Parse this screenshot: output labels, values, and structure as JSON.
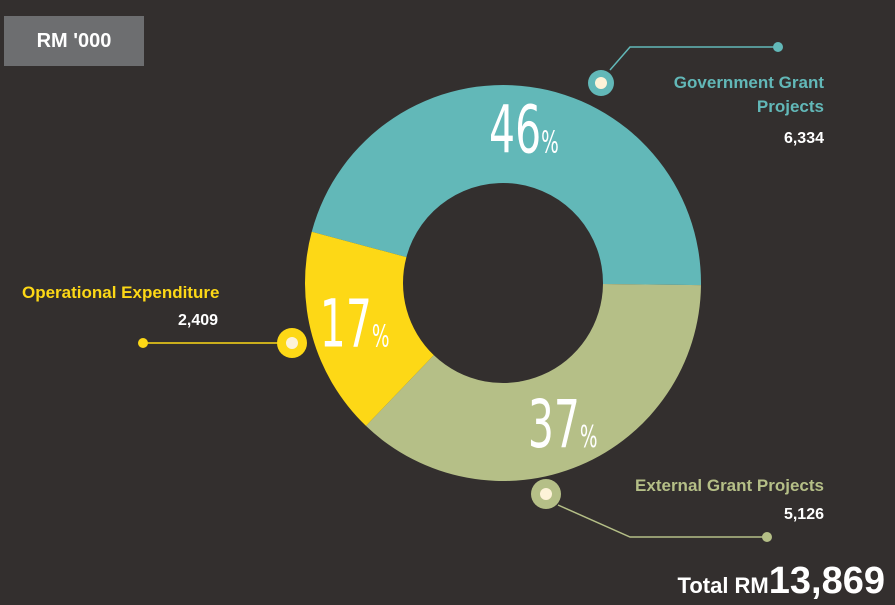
{
  "chart_data": {
    "type": "pie",
    "unit": "RM '000",
    "categories": [
      "Government Grant Projects",
      "External Grant Projects",
      "Operational Expenditure"
    ],
    "values": [
      46,
      37,
      17
    ],
    "value_labels": [
      "46%",
      "37%",
      "17%"
    ],
    "colors": [
      "#62b8b8",
      "#b5bf87",
      "#fdd816"
    ],
    "amounts": [
      6334,
      5126,
      2409
    ],
    "amount_labels": [
      "6,334",
      "5,126",
      "2,409"
    ],
    "total_label": "Total RM",
    "total": {
      "value": 13869,
      "label": "13,869"
    }
  }
}
